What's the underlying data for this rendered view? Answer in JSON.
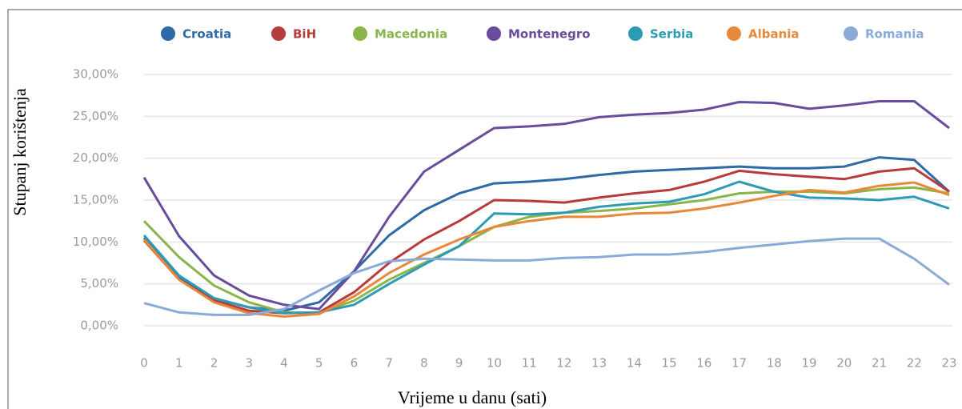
{
  "chart_data": {
    "type": "line",
    "x_label": "Vrijeme u danu (sati)",
    "y_label": "Stupanj korištenja",
    "x": [
      0,
      1,
      2,
      3,
      4,
      5,
      6,
      7,
      8,
      9,
      10,
      11,
      12,
      13,
      14,
      15,
      16,
      17,
      18,
      19,
      20,
      21,
      22,
      23
    ],
    "xlim": [
      0,
      23
    ],
    "xticks": [
      0,
      1,
      2,
      3,
      4,
      5,
      6,
      7,
      8,
      9,
      10,
      11,
      12,
      13,
      14,
      15,
      16,
      17,
      18,
      19,
      20,
      21,
      22,
      23
    ],
    "ylim": [
      0,
      30
    ],
    "yticks": [
      {
        "value": 0,
        "label": "0,00%"
      },
      {
        "value": 5,
        "label": "5,00%"
      },
      {
        "value": 10,
        "label": "10,00%"
      },
      {
        "value": 15,
        "label": "15,00%"
      },
      {
        "value": 20,
        "label": "20,00%"
      },
      {
        "value": 25,
        "label": "25,00%"
      },
      {
        "value": 30,
        "label": "30,00%"
      }
    ],
    "grid": true,
    "legend": "top",
    "series": [
      {
        "name": "Croatia",
        "color": "#2e6aa8",
        "values": [
          10.5,
          5.8,
          3.2,
          2.2,
          1.8,
          2.8,
          6.5,
          10.8,
          13.8,
          15.8,
          17.0,
          17.2,
          17.5,
          18.0,
          18.4,
          18.6,
          18.8,
          19.0,
          18.8,
          18.8,
          19.0,
          20.1,
          19.8,
          16.0
        ]
      },
      {
        "name": "BiH",
        "color": "#b83b3b",
        "values": [
          10.2,
          5.5,
          3.0,
          1.8,
          1.5,
          1.6,
          4.0,
          7.5,
          10.3,
          12.5,
          15.0,
          14.9,
          14.7,
          15.3,
          15.8,
          16.2,
          17.2,
          18.5,
          18.1,
          17.8,
          17.5,
          18.4,
          18.8,
          16.0
        ]
      },
      {
        "name": "Macedonia",
        "color": "#8ab54a",
        "values": [
          12.5,
          8.2,
          4.8,
          2.8,
          1.6,
          1.5,
          3.0,
          5.5,
          7.5,
          9.5,
          11.8,
          13.0,
          13.5,
          13.7,
          14.0,
          14.5,
          15.0,
          15.8,
          16.0,
          16.0,
          15.8,
          16.3,
          16.5,
          15.8
        ]
      },
      {
        "name": "Montenegro",
        "color": "#6a4c9c",
        "values": [
          17.7,
          10.7,
          6.0,
          3.6,
          2.5,
          2.0,
          6.5,
          13.0,
          18.4,
          21.0,
          23.6,
          23.8,
          24.1,
          24.9,
          25.2,
          25.4,
          25.8,
          26.7,
          26.6,
          25.9,
          26.3,
          26.8,
          26.8,
          23.6
        ]
      },
      {
        "name": "Serbia",
        "color": "#2e9bb5",
        "values": [
          10.8,
          6.0,
          3.3,
          2.2,
          1.5,
          1.6,
          2.5,
          5.0,
          7.3,
          9.5,
          13.4,
          13.3,
          13.5,
          14.2,
          14.6,
          14.8,
          15.7,
          17.2,
          16.0,
          15.3,
          15.2,
          15.0,
          15.4,
          14.0
        ]
      },
      {
        "name": "Albania",
        "color": "#e8883a",
        "values": [
          10.3,
          5.5,
          2.8,
          1.5,
          1.1,
          1.4,
          3.5,
          6.3,
          8.5,
          10.3,
          11.8,
          12.5,
          13.0,
          13.0,
          13.4,
          13.5,
          14.0,
          14.7,
          15.5,
          16.2,
          15.9,
          16.7,
          17.1,
          15.6
        ]
      },
      {
        "name": "Romania",
        "color": "#8aaad8",
        "values": [
          2.7,
          1.6,
          1.3,
          1.3,
          2.0,
          4.2,
          6.3,
          7.7,
          8.0,
          7.9,
          7.8,
          7.8,
          8.1,
          8.2,
          8.5,
          8.5,
          8.8,
          9.3,
          9.7,
          10.1,
          10.4,
          10.4,
          8.0,
          4.9
        ]
      }
    ]
  }
}
